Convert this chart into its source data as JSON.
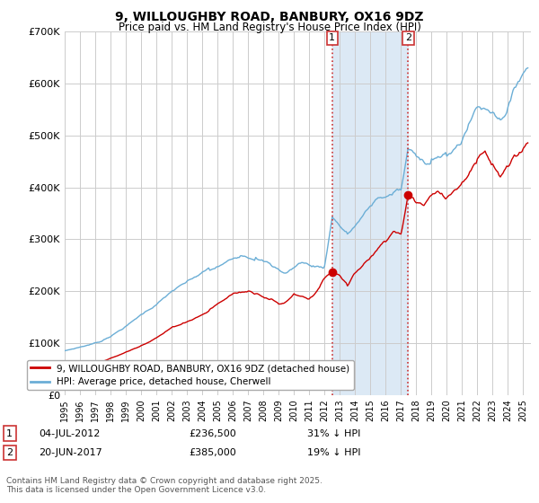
{
  "title": "9, WILLOUGHBY ROAD, BANBURY, OX16 9DZ",
  "subtitle": "Price paid vs. HM Land Registry's House Price Index (HPI)",
  "legend_line1": "9, WILLOUGHBY ROAD, BANBURY, OX16 9DZ (detached house)",
  "legend_line2": "HPI: Average price, detached house, Cherwell",
  "annotation1_date": "04-JUL-2012",
  "annotation1_price": "£236,500",
  "annotation1_hpi": "31% ↓ HPI",
  "annotation2_date": "20-JUN-2017",
  "annotation2_price": "£385,000",
  "annotation2_hpi": "19% ↓ HPI",
  "footer": "Contains HM Land Registry data © Crown copyright and database right 2025.\nThis data is licensed under the Open Government Licence v3.0.",
  "ylim": [
    0,
    700000
  ],
  "yticks": [
    0,
    100000,
    200000,
    300000,
    400000,
    500000,
    600000,
    700000
  ],
  "xlim_start": 1995.0,
  "xlim_end": 2025.5,
  "hpi_color": "#6baed6",
  "price_color": "#cc0000",
  "shade_color": "#dce9f5",
  "vline_color": "#cc3333",
  "point1_x": 2012.5,
  "point1_y": 236500,
  "point2_x": 2017.46,
  "point2_y": 385000,
  "background_color": "#ffffff",
  "grid_color": "#cccccc"
}
